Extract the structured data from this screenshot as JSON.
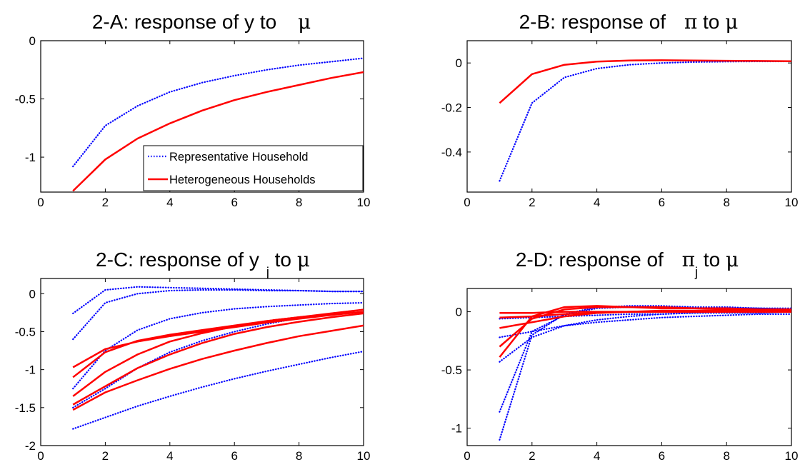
{
  "colors": {
    "representative": "#0000ff",
    "heterogeneous": "#ff0000",
    "axes": "#000000",
    "background": "#ffffff"
  },
  "legend": {
    "placement": "bottom-right",
    "panel": "2-A"
  },
  "chart_data": [
    {
      "id": "A",
      "type": "line",
      "title": {
        "main": "2-A: response of y to ",
        "symbol": "μ"
      },
      "xlim": [
        0,
        10
      ],
      "ylim": [
        -1.3,
        0
      ],
      "xticks": [
        "0",
        "2",
        "4",
        "6",
        "8",
        "10"
      ],
      "yticks": [
        "0",
        "-0.5",
        "-1"
      ],
      "ytick_values": [
        0,
        -0.5,
        -1
      ],
      "x": [
        1,
        2,
        3,
        4,
        5,
        6,
        7,
        8,
        9,
        10
      ],
      "series": [
        {
          "name": "Representative Household",
          "style": "dotted",
          "group": "representative",
          "values": [
            -1.08,
            -0.73,
            -0.56,
            -0.44,
            -0.36,
            -0.3,
            -0.25,
            -0.21,
            -0.18,
            -0.15
          ]
        },
        {
          "name": "Heterogeneous Households",
          "style": "solid",
          "group": "heterogeneous",
          "values": [
            -1.29,
            -1.02,
            -0.84,
            -0.71,
            -0.6,
            -0.51,
            -0.44,
            -0.38,
            -0.32,
            -0.27
          ]
        }
      ]
    },
    {
      "id": "B",
      "type": "line",
      "title": {
        "main": "2-B: response of ",
        "symbol": "π",
        "mid": " to ",
        "symbol2": "μ"
      },
      "xlim": [
        0,
        10
      ],
      "ylim": [
        -0.58,
        0.1
      ],
      "xticks": [
        "0",
        "2",
        "4",
        "6",
        "8",
        "10"
      ],
      "yticks": [
        "0",
        "-0.2",
        "-0.4"
      ],
      "ytick_values": [
        0,
        -0.2,
        -0.4
      ],
      "x": [
        1,
        2,
        3,
        4,
        5,
        6,
        7,
        8,
        9,
        10
      ],
      "series": [
        {
          "style": "dotted",
          "group": "representative",
          "values": [
            -0.53,
            -0.18,
            -0.065,
            -0.025,
            -0.008,
            0.0,
            0.004,
            0.006,
            0.007,
            0.007
          ]
        },
        {
          "style": "solid",
          "group": "heterogeneous",
          "values": [
            -0.18,
            -0.05,
            -0.008,
            0.006,
            0.011,
            0.012,
            0.011,
            0.01,
            0.009,
            0.008
          ]
        }
      ]
    },
    {
      "id": "C",
      "type": "line",
      "title": {
        "main": "2-C: response of y",
        "sub": "j",
        "mid": " to ",
        "symbol": "μ"
      },
      "xlim": [
        0,
        10
      ],
      "ylim": [
        -2,
        0.2
      ],
      "xticks": [
        "0",
        "2",
        "4",
        "6",
        "8",
        "10"
      ],
      "yticks": [
        "0",
        "-0.5",
        "-1",
        "-1.5",
        "-2"
      ],
      "ytick_values": [
        0,
        -0.5,
        -1,
        -1.5,
        -2
      ],
      "x": [
        1,
        2,
        3,
        4,
        5,
        6,
        7,
        8,
        9,
        10
      ],
      "series": [
        {
          "style": "dotted",
          "group": "representative",
          "values": [
            -0.26,
            0.05,
            0.09,
            0.08,
            0.07,
            0.06,
            0.05,
            0.04,
            0.03,
            0.03
          ]
        },
        {
          "style": "dotted",
          "group": "representative",
          "values": [
            -0.6,
            -0.12,
            0.0,
            0.04,
            0.05,
            0.05,
            0.04,
            0.04,
            0.03,
            0.03
          ]
        },
        {
          "style": "dotted",
          "group": "representative",
          "values": [
            -1.25,
            -0.75,
            -0.48,
            -0.33,
            -0.25,
            -0.2,
            -0.17,
            -0.15,
            -0.13,
            -0.12
          ]
        },
        {
          "style": "dotted",
          "group": "representative",
          "values": [
            -1.5,
            -1.25,
            -0.98,
            -0.77,
            -0.62,
            -0.5,
            -0.4,
            -0.32,
            -0.26,
            -0.21
          ]
        },
        {
          "style": "dotted",
          "group": "representative",
          "values": [
            -1.78,
            -1.63,
            -1.48,
            -1.35,
            -1.23,
            -1.12,
            -1.02,
            -0.93,
            -0.84,
            -0.76
          ]
        },
        {
          "style": "solid",
          "group": "heterogeneous",
          "values": [
            -0.97,
            -0.73,
            -0.63,
            -0.56,
            -0.5,
            -0.44,
            -0.38,
            -0.33,
            -0.28,
            -0.24
          ]
        },
        {
          "style": "solid",
          "group": "heterogeneous",
          "values": [
            -1.1,
            -0.77,
            -0.62,
            -0.54,
            -0.48,
            -0.42,
            -0.36,
            -0.31,
            -0.26,
            -0.21
          ]
        },
        {
          "style": "solid",
          "group": "heterogeneous",
          "values": [
            -1.35,
            -1.03,
            -0.8,
            -0.63,
            -0.52,
            -0.43,
            -0.36,
            -0.31,
            -0.27,
            -0.24
          ]
        },
        {
          "style": "solid",
          "group": "heterogeneous",
          "values": [
            -1.46,
            -1.22,
            -0.98,
            -0.8,
            -0.65,
            -0.53,
            -0.44,
            -0.37,
            -0.31,
            -0.26
          ]
        },
        {
          "style": "solid",
          "group": "heterogeneous",
          "values": [
            -1.53,
            -1.3,
            -1.14,
            -0.99,
            -0.86,
            -0.75,
            -0.65,
            -0.56,
            -0.49,
            -0.42
          ]
        }
      ]
    },
    {
      "id": "D",
      "type": "line",
      "title": {
        "main": "2-D: response of ",
        "symbol": "π",
        "sub": "j",
        "mid": " to ",
        "symbol2": "μ"
      },
      "xlim": [
        0,
        10
      ],
      "ylim": [
        -1.15,
        0.2
      ],
      "xticks": [
        "0",
        "2",
        "4",
        "6",
        "8",
        "10"
      ],
      "yticks": [
        "0",
        "-0.5",
        "-1"
      ],
      "ytick_values": [
        0,
        -0.5,
        -1
      ],
      "x": [
        1,
        2,
        3,
        4,
        5,
        6,
        7,
        8,
        9,
        10
      ],
      "series": [
        {
          "style": "dotted",
          "group": "representative",
          "values": [
            -1.1,
            -0.2,
            -0.02,
            0.04,
            0.05,
            0.05,
            0.04,
            0.04,
            0.03,
            0.03
          ]
        },
        {
          "style": "dotted",
          "group": "representative",
          "values": [
            -0.86,
            -0.17,
            -0.03,
            0.03,
            0.04,
            0.04,
            0.03,
            0.03,
            0.03,
            0.02
          ]
        },
        {
          "style": "dotted",
          "group": "representative",
          "values": [
            -0.43,
            -0.22,
            -0.12,
            -0.07,
            -0.04,
            -0.02,
            -0.01,
            0.0,
            0.0,
            0.01
          ]
        },
        {
          "style": "dotted",
          "group": "representative",
          "values": [
            -0.22,
            -0.17,
            -0.12,
            -0.09,
            -0.07,
            -0.05,
            -0.04,
            -0.03,
            -0.02,
            -0.02
          ]
        },
        {
          "style": "dotted",
          "group": "representative",
          "values": [
            -0.06,
            -0.05,
            -0.04,
            -0.03,
            -0.02,
            -0.02,
            -0.01,
            -0.01,
            -0.01,
            0.0
          ]
        },
        {
          "style": "solid",
          "group": "heterogeneous",
          "values": [
            -0.39,
            -0.04,
            0.04,
            0.05,
            0.04,
            0.04,
            0.03,
            0.03,
            0.02,
            0.02
          ]
        },
        {
          "style": "solid",
          "group": "heterogeneous",
          "values": [
            -0.3,
            -0.06,
            0.02,
            0.04,
            0.04,
            0.03,
            0.03,
            0.02,
            0.02,
            0.02
          ]
        },
        {
          "style": "solid",
          "group": "heterogeneous",
          "values": [
            -0.14,
            -0.09,
            -0.04,
            -0.01,
            0.0,
            0.01,
            0.01,
            0.01,
            0.01,
            0.01
          ]
        },
        {
          "style": "solid",
          "group": "heterogeneous",
          "values": [
            -0.05,
            -0.04,
            -0.02,
            -0.01,
            0.0,
            0.0,
            0.0,
            0.0,
            0.0,
            0.0
          ]
        },
        {
          "style": "solid",
          "group": "heterogeneous",
          "values": [
            -0.01,
            -0.01,
            0.0,
            0.0,
            0.0,
            0.0,
            0.0,
            0.0,
            0.0,
            0.0
          ]
        }
      ]
    }
  ]
}
